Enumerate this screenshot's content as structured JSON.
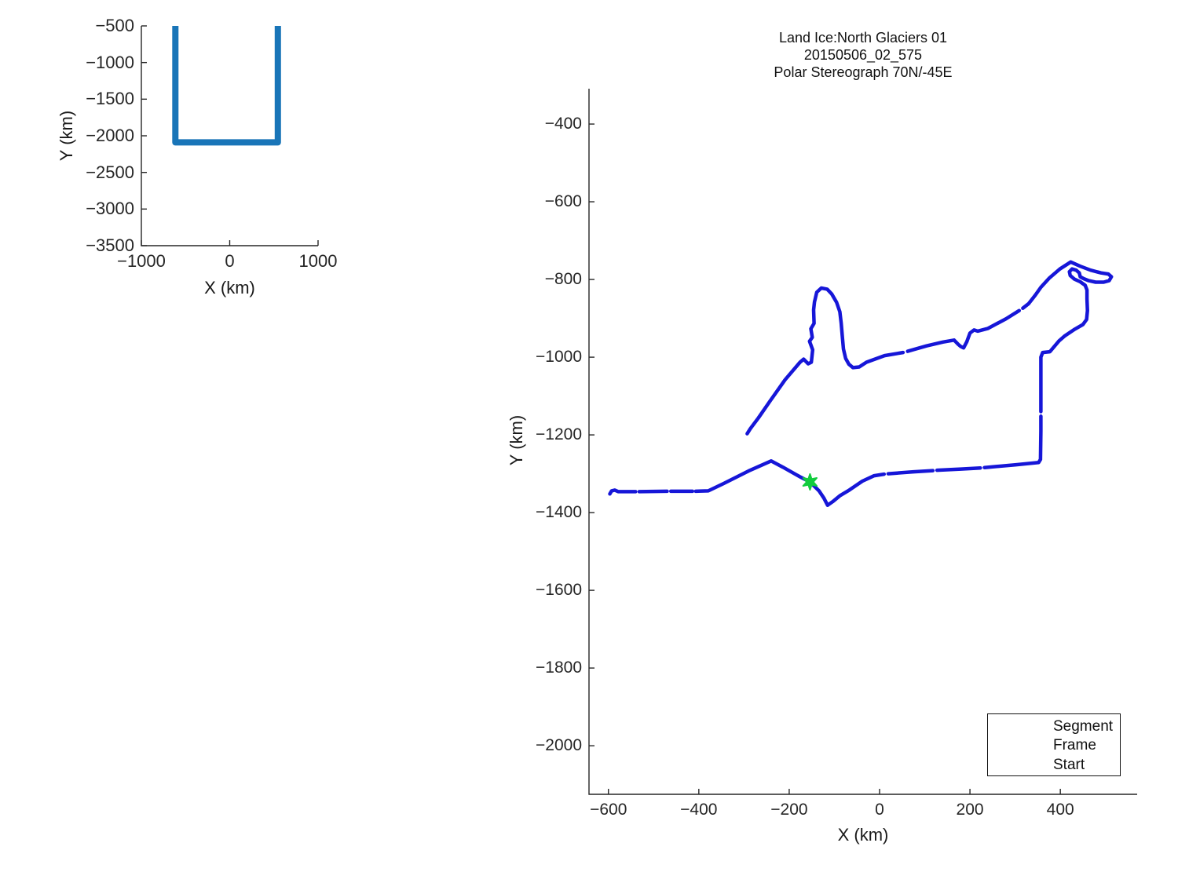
{
  "figure": {
    "background": "#ffffff",
    "axis_color": "#262626",
    "tick_label_color": "#262626",
    "text_color": "#111111"
  },
  "chart_data": [
    {
      "type": "line",
      "name": "overview-locator-plot",
      "title": "",
      "xlabel": "X (km)",
      "ylabel": "Y (km)",
      "xlim": [
        -1000,
        1000
      ],
      "ylim": [
        -3500,
        -500
      ],
      "x_ticks": [
        -1000,
        0,
        1000
      ],
      "y_ticks": [
        -500,
        -1000,
        -1500,
        -2000,
        -2500,
        -3000,
        -3500
      ],
      "grid": false,
      "line_color": "#1975b8",
      "line_width": 8,
      "points": [
        [
          -615,
          -500
        ],
        [
          -615,
          -2090
        ],
        [
          545,
          -2090
        ],
        [
          545,
          -500
        ]
      ]
    },
    {
      "type": "line",
      "name": "ground-track-plot",
      "title_lines": [
        "Land Ice:North Glaciers 01",
        "20150506_02_575",
        "Polar Stereograph 70N/-45E"
      ],
      "xlabel": "X (km)",
      "ylabel": "Y (km)",
      "xlim": [
        -643,
        570
      ],
      "ylim": [
        -2125,
        -309
      ],
      "x_ticks": [
        -600,
        -400,
        -200,
        0,
        200,
        400
      ],
      "y_ticks": [
        -400,
        -600,
        -800,
        -1000,
        -1200,
        -1400,
        -1600,
        -1800,
        -2000
      ],
      "grid": false,
      "line_color": "#1616d8",
      "line_width": 4.5,
      "segments": [
        [
          [
            -597,
            -1352
          ],
          [
            -593,
            -1344
          ],
          [
            -586,
            -1342
          ],
          [
            -578,
            -1346
          ],
          [
            -540,
            -1346
          ]
        ],
        [
          [
            -532,
            -1346
          ],
          [
            -470,
            -1345
          ]
        ],
        [
          [
            -462,
            -1345
          ],
          [
            -414,
            -1345
          ]
        ],
        [
          [
            -407,
            -1345
          ],
          [
            -379,
            -1344
          ],
          [
            -345,
            -1325
          ],
          [
            -290,
            -1293
          ],
          [
            -240,
            -1267
          ],
          [
            -214,
            -1283
          ],
          [
            -176,
            -1308
          ],
          [
            -154,
            -1321
          ],
          [
            -134,
            -1344
          ],
          [
            -123,
            -1363
          ],
          [
            -115,
            -1381
          ],
          [
            -104,
            -1372
          ],
          [
            -87,
            -1356
          ],
          [
            -67,
            -1342
          ],
          [
            -38,
            -1319
          ],
          [
            -12,
            -1305
          ],
          [
            10,
            -1301
          ]
        ],
        [
          [
            19,
            -1300
          ],
          [
            75,
            -1295
          ],
          [
            118,
            -1292
          ]
        ],
        [
          [
            127,
            -1291
          ],
          [
            180,
            -1288
          ],
          [
            223,
            -1285
          ]
        ],
        [
          [
            232,
            -1284
          ],
          [
            300,
            -1277
          ],
          [
            352,
            -1271
          ],
          [
            356,
            -1263
          ],
          [
            357,
            -1190
          ],
          [
            357,
            -1152
          ]
        ],
        [
          [
            357,
            -1140
          ],
          [
            357,
            -1000
          ],
          [
            361,
            -988
          ],
          [
            377,
            -986
          ],
          [
            397,
            -958
          ],
          [
            409,
            -946
          ],
          [
            432,
            -928
          ],
          [
            450,
            -916
          ],
          [
            458,
            -903
          ],
          [
            460,
            -880
          ],
          [
            459,
            -850
          ],
          [
            459,
            -827
          ],
          [
            455,
            -815
          ],
          [
            444,
            -806
          ],
          [
            431,
            -799
          ],
          [
            422,
            -790
          ],
          [
            420,
            -780
          ],
          [
            426,
            -773
          ],
          [
            435,
            -776
          ],
          [
            442,
            -783
          ],
          [
            444,
            -793
          ],
          [
            452,
            -798
          ],
          [
            463,
            -803
          ],
          [
            478,
            -807
          ],
          [
            496,
            -807
          ],
          [
            508,
            -803
          ],
          [
            513,
            -793
          ],
          [
            506,
            -786
          ],
          [
            490,
            -783
          ],
          [
            467,
            -776
          ],
          [
            444,
            -766
          ],
          [
            423,
            -755
          ],
          [
            399,
            -773
          ],
          [
            375,
            -797
          ],
          [
            357,
            -820
          ],
          [
            344,
            -841
          ],
          [
            330,
            -862
          ],
          [
            317,
            -874
          ]
        ],
        [
          [
            309,
            -880
          ],
          [
            280,
            -901
          ],
          [
            251,
            -919
          ],
          [
            240,
            -926
          ],
          [
            217,
            -933
          ],
          [
            209,
            -930
          ],
          [
            200,
            -938
          ],
          [
            193,
            -960
          ],
          [
            186,
            -976
          ],
          [
            179,
            -972
          ],
          [
            174,
            -967
          ],
          [
            165,
            -956
          ],
          [
            140,
            -961
          ],
          [
            104,
            -971
          ],
          [
            62,
            -985
          ]
        ],
        [
          [
            52,
            -988
          ],
          [
            11,
            -996
          ],
          [
            -29,
            -1013
          ],
          [
            -45,
            -1025
          ],
          [
            -59,
            -1027
          ],
          [
            -68,
            -1018
          ],
          [
            -75,
            -1003
          ],
          [
            -80,
            -979
          ],
          [
            -82,
            -952
          ],
          [
            -85,
            -912
          ],
          [
            -88,
            -883
          ],
          [
            -95,
            -859
          ],
          [
            -106,
            -837
          ],
          [
            -116,
            -825
          ],
          [
            -129,
            -822
          ],
          [
            -139,
            -833
          ],
          [
            -144,
            -858
          ],
          [
            -146,
            -878
          ],
          [
            -145,
            -913
          ],
          [
            -152,
            -927
          ],
          [
            -149,
            -949
          ],
          [
            -155,
            -959
          ],
          [
            -148,
            -981
          ],
          [
            -151,
            -1013
          ],
          [
            -158,
            -1017
          ],
          [
            -168,
            -1005
          ],
          [
            -176,
            -1013
          ],
          [
            -209,
            -1058
          ],
          [
            -240,
            -1109
          ],
          [
            -268,
            -1156
          ],
          [
            -286,
            -1184
          ],
          [
            -293,
            -1197
          ]
        ]
      ],
      "start_marker": {
        "x": -154,
        "y": -1321,
        "color": "#12cc3e"
      },
      "legend": {
        "position": "lower right",
        "entries": [
          {
            "label": "Segment",
            "marker": "dot",
            "color": "#1616d8"
          },
          {
            "label": "Frame",
            "marker": "dot",
            "color": "#d42a2a"
          },
          {
            "label": "Start",
            "marker": "star",
            "color": "#12cc3e"
          }
        ]
      }
    }
  ]
}
